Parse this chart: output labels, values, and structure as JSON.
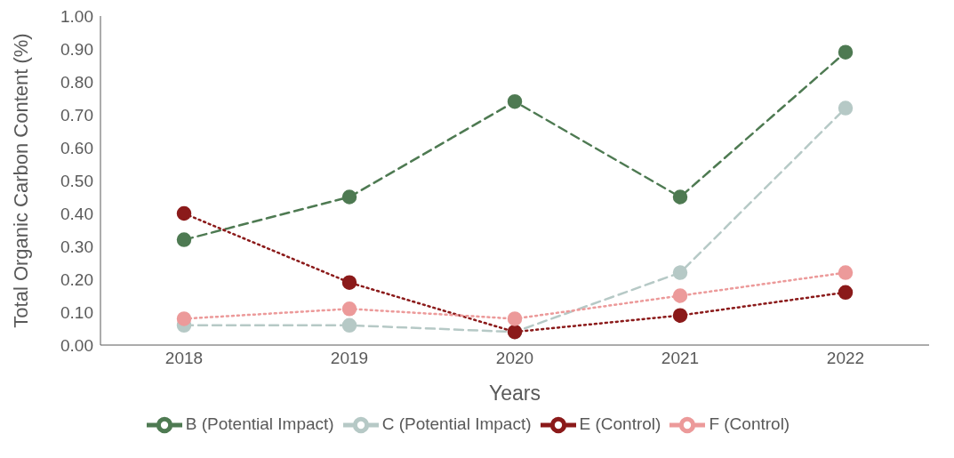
{
  "chart_data": {
    "type": "line",
    "xlabel": "Years",
    "ylabel": "Total Organic Carbon Content (%)",
    "categories": [
      "2018",
      "2019",
      "2020",
      "2021",
      "2022"
    ],
    "series": [
      {
        "name": "B (Potential Impact)",
        "color": "#4e7a52",
        "line_style": "dashed",
        "values": [
          0.32,
          0.45,
          0.74,
          0.45,
          0.89
        ]
      },
      {
        "name": "C (Potential Impact)",
        "color": "#b6c9c6",
        "line_style": "dashed",
        "values": [
          0.06,
          0.06,
          0.04,
          0.22,
          0.72
        ]
      },
      {
        "name": "E (Control)",
        "color": "#8b1a1a",
        "line_style": "dotted",
        "values": [
          0.4,
          0.19,
          0.04,
          0.09,
          0.16
        ]
      },
      {
        "name": "F (Control)",
        "color": "#ec9a9a",
        "line_style": "dotted",
        "values": [
          0.08,
          0.11,
          0.08,
          0.15,
          0.22
        ]
      }
    ],
    "ylim": [
      0,
      1
    ],
    "yticks": [
      {
        "value": 0,
        "label": "0.00"
      },
      {
        "value": 0.1,
        "label": "0.10"
      },
      {
        "value": 0.2,
        "label": "0.20"
      },
      {
        "value": 0.3,
        "label": "0.30"
      },
      {
        "value": 0.4,
        "label": "0.40"
      },
      {
        "value": 0.5,
        "label": "0.50"
      },
      {
        "value": 0.6,
        "label": "0.60"
      },
      {
        "value": 0.7,
        "label": "0.70"
      },
      {
        "value": 0.8,
        "label": "0.80"
      },
      {
        "value": 0.9,
        "label": "0.90"
      },
      {
        "value": 1,
        "label": "1.00"
      }
    ],
    "grid": false,
    "legend": "bottom",
    "marker": "circle"
  }
}
